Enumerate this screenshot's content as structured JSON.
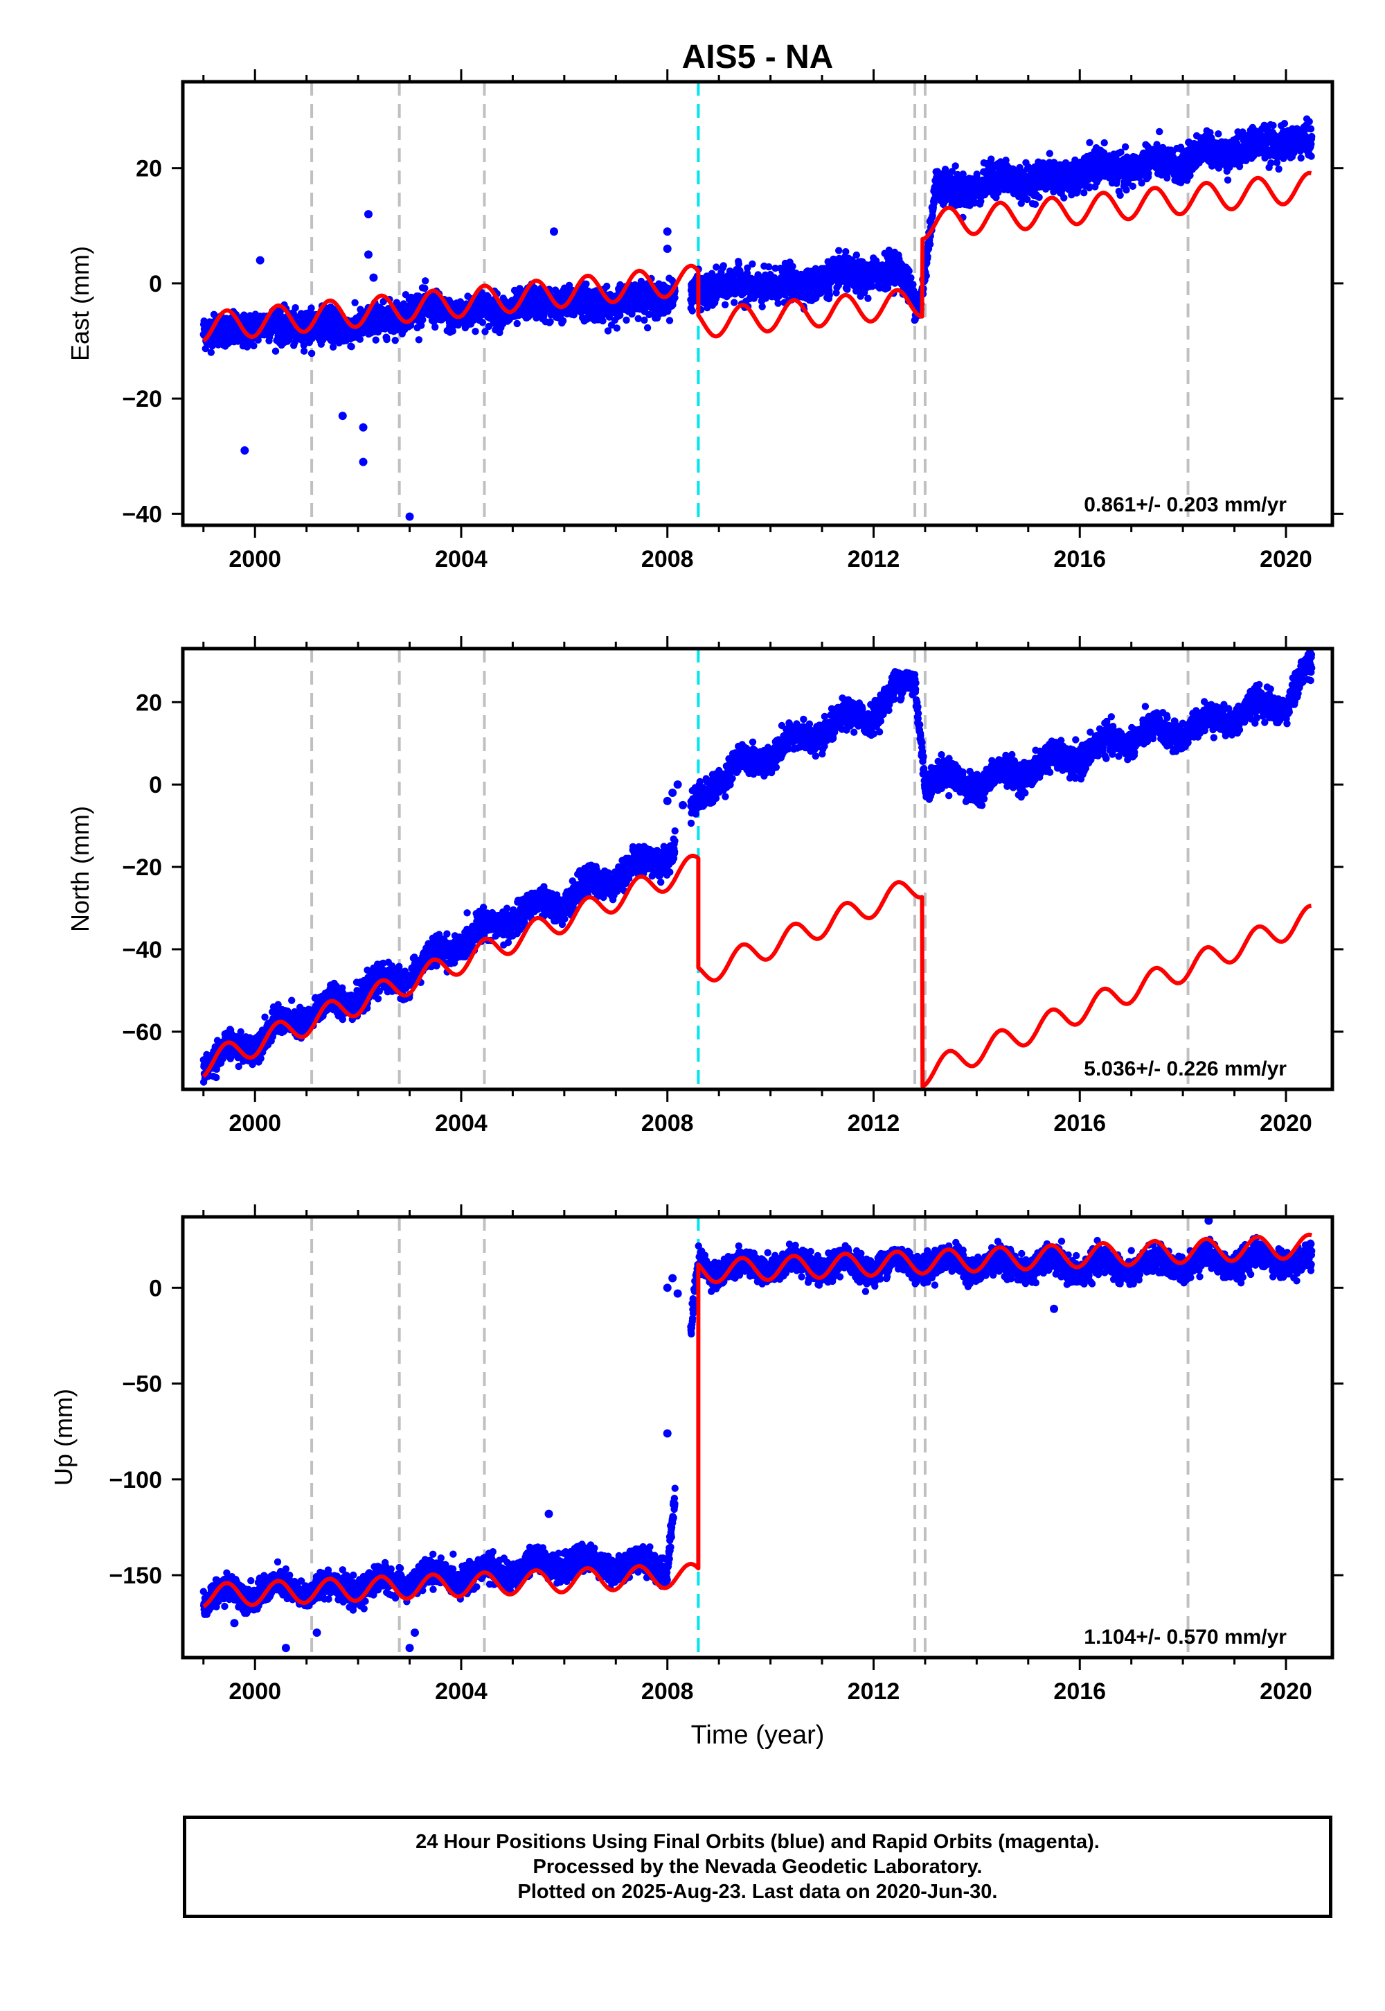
{
  "colors": {
    "final_orbits": "#0000ff",
    "model": "#ff0000",
    "equipment_change": "#c0c0c0",
    "earthquake": "#00e5ee"
  },
  "chart_data": [
    {
      "type": "scatter",
      "title": "AIS5 - NA",
      "ylabel": "East (mm)",
      "xlabel": "",
      "xlim": [
        1998.6,
        2020.9
      ],
      "ylim": [
        -42,
        35
      ],
      "x_ticks": [
        2000,
        2004,
        2008,
        2012,
        2016,
        2020
      ],
      "y_ticks": [
        20,
        0,
        -20,
        -40
      ],
      "rate_label": "0.861+/- 0.203 mm/yr",
      "rate_mm_per_yr": 0.861,
      "annual_amplitude_mm": 2.5,
      "equipment_change_years": [
        2001.1,
        2002.8,
        2004.45,
        2012.8,
        2013.0,
        2018.1
      ],
      "earthquake_years": [
        2008.6
      ],
      "series": [
        {
          "values_kind": "daily_positions",
          "x": [
            1999.0,
            1999.5,
            2000.0,
            2000.5,
            2001.0,
            2001.5,
            2002.0,
            2002.5,
            2003.0,
            2003.5,
            2004.0,
            2004.5,
            2005.0,
            2005.5,
            2006.0,
            2006.5,
            2007.0,
            2007.5,
            2008.0,
            2008.5,
            2009.0,
            2009.5,
            2010.0,
            2010.5,
            2011.0,
            2011.5,
            2012.0,
            2012.5,
            2012.9,
            2013.2,
            2013.5,
            2014.0,
            2014.5,
            2015.0,
            2015.5,
            2016.0,
            2016.5,
            2017.0,
            2017.5,
            2018.0,
            2018.5,
            2019.0,
            2019.5,
            2020.0,
            2020.5
          ],
          "y": [
            -7,
            -10,
            -6,
            -9,
            -6,
            -9,
            -6,
            -8,
            -3,
            -6,
            -4,
            -6,
            -3,
            -5,
            -2,
            -5,
            -2,
            -4,
            -1,
            -3,
            1,
            -2,
            1,
            -2,
            2,
            0,
            3,
            1,
            -3,
            17,
            15,
            18,
            17,
            19,
            17,
            20,
            19,
            21,
            20,
            22,
            22,
            24,
            23,
            26,
            23
          ]
        },
        {
          "values_kind": "model",
          "segments": [
            {
              "start": 1999.0,
              "end": 2008.6,
              "a": -7.6,
              "b": 0.861
            },
            {
              "start": 2008.6,
              "end": 2012.95,
              "a": -7.0,
              "b": 0.861
            },
            {
              "start": 2012.95,
              "end": 2020.5,
              "a": 10.2,
              "b": 0.861
            }
          ]
        }
      ],
      "outliers": [
        [
          1999.8,
          -29
        ],
        [
          2000.1,
          4
        ],
        [
          2001.7,
          -23
        ],
        [
          2002.1,
          -25
        ],
        [
          2002.1,
          -31
        ],
        [
          2002.2,
          5
        ],
        [
          2002.2,
          12
        ],
        [
          2002.3,
          1
        ],
        [
          2003.0,
          -40.5
        ],
        [
          2005.8,
          9
        ],
        [
          2008.0,
          6
        ],
        [
          2008.0,
          9
        ]
      ]
    },
    {
      "type": "scatter",
      "title": "",
      "ylabel": "North (mm)",
      "xlabel": "",
      "xlim": [
        1998.6,
        2020.9
      ],
      "ylim": [
        -74,
        33
      ],
      "x_ticks": [
        2000,
        2004,
        2008,
        2012,
        2016,
        2020
      ],
      "y_ticks": [
        20,
        0,
        -20,
        -40,
        -60
      ],
      "rate_label": "5.036+/- 0.226 mm/yr",
      "rate_mm_per_yr": 5.036,
      "annual_amplitude_mm": 3.0,
      "equipment_change_years": [
        2001.1,
        2002.8,
        2004.45,
        2012.8,
        2013.0,
        2018.1
      ],
      "earthquake_years": [
        2008.6
      ],
      "series": [
        {
          "values_kind": "daily_positions",
          "x": [
            1999.0,
            2000.0,
            2001.0,
            2002.0,
            2003.0,
            2004.0,
            2005.0,
            2006.0,
            2007.0,
            2008.0,
            2008.6,
            2009.0,
            2010.0,
            2011.0,
            2012.0,
            2012.8,
            2013.0,
            2014.0,
            2015.0,
            2016.0,
            2017.0,
            2018.0,
            2019.0,
            2020.0,
            2020.5
          ],
          "y": [
            -68,
            -62,
            -56,
            -51,
            -46,
            -38,
            -32,
            -28,
            -22,
            -17,
            -4,
            2,
            8,
            13,
            18,
            26,
            2,
            0,
            4,
            7,
            12,
            13,
            17,
            20,
            29
          ]
        },
        {
          "values_kind": "model",
          "segments": [
            {
              "start": 1999.0,
              "end": 2008.6,
              "a": -68.0,
              "b": 5.036
            },
            {
              "start": 2008.6,
              "end": 2012.95,
              "a": -46.2,
              "b": 5.036
            },
            {
              "start": 2012.95,
              "end": 2020.5,
              "a": -70.3,
              "b": 5.036
            }
          ]
        }
      ],
      "outliers": [
        [
          2008.0,
          -4
        ],
        [
          2008.1,
          -2
        ],
        [
          2008.3,
          -5
        ],
        [
          2008.2,
          0
        ]
      ]
    },
    {
      "type": "scatter",
      "title": "",
      "ylabel": "Up (mm)",
      "xlabel": "Time (year)",
      "xlim": [
        1998.6,
        2020.9
      ],
      "ylim": [
        -193,
        37
      ],
      "x_ticks": [
        2000,
        2004,
        2008,
        2012,
        2016,
        2020
      ],
      "y_ticks": [
        0,
        -50,
        -100,
        -150
      ],
      "rate_label": "1.104+/- 0.570 mm/yr",
      "rate_mm_per_yr": 1.104,
      "annual_amplitude_mm": 6.0,
      "equipment_change_years": [
        2001.1,
        2002.8,
        2004.45,
        2012.8,
        2013.0,
        2018.1
      ],
      "earthquake_years": [
        2008.6
      ],
      "series": [
        {
          "values_kind": "daily_positions",
          "x": [
            1999.0,
            2000.0,
            2001.0,
            2002.0,
            2003.0,
            2004.0,
            2005.0,
            2006.0,
            2007.0,
            2008.0,
            2008.6,
            2009.0,
            2010.0,
            2011.0,
            2012.0,
            2013.0,
            2014.0,
            2015.0,
            2016.0,
            2017.0,
            2018.0,
            2019.0,
            2020.0,
            2020.5
          ],
          "y": [
            -162,
            -158,
            -157,
            -157,
            -152,
            -150,
            -147,
            -143,
            -145,
            -144,
            12,
            10,
            12,
            11,
            12,
            13,
            12,
            12,
            11,
            11,
            13,
            14,
            15,
            12
          ]
        },
        {
          "values_kind": "model",
          "segments": [
            {
              "start": 1999.0,
              "end": 2008.6,
              "a": -160.6,
              "b": 1.104
            },
            {
              "start": 2008.6,
              "end": 2020.5,
              "a": 8.6,
              "b": 1.104
            }
          ]
        }
      ],
      "outliers": [
        [
          1999.6,
          -175
        ],
        [
          2000.6,
          -188
        ],
        [
          2001.2,
          -180
        ],
        [
          2003.1,
          -180
        ],
        [
          2003.0,
          -188
        ],
        [
          2005.7,
          -118
        ],
        [
          2008.0,
          -76
        ],
        [
          2008.0,
          0
        ],
        [
          2008.1,
          5
        ],
        [
          2008.2,
          -3
        ],
        [
          2015.5,
          -11
        ],
        [
          2018.5,
          35
        ]
      ]
    }
  ],
  "footer": {
    "line1": "24 Hour Positions Using Final Orbits (blue) and Rapid Orbits (magenta).",
    "line2": "Processed by the Nevada Geodetic Laboratory.",
    "line3": "Plotted on 2025-Aug-23. Last data on 2020-Jun-30."
  }
}
